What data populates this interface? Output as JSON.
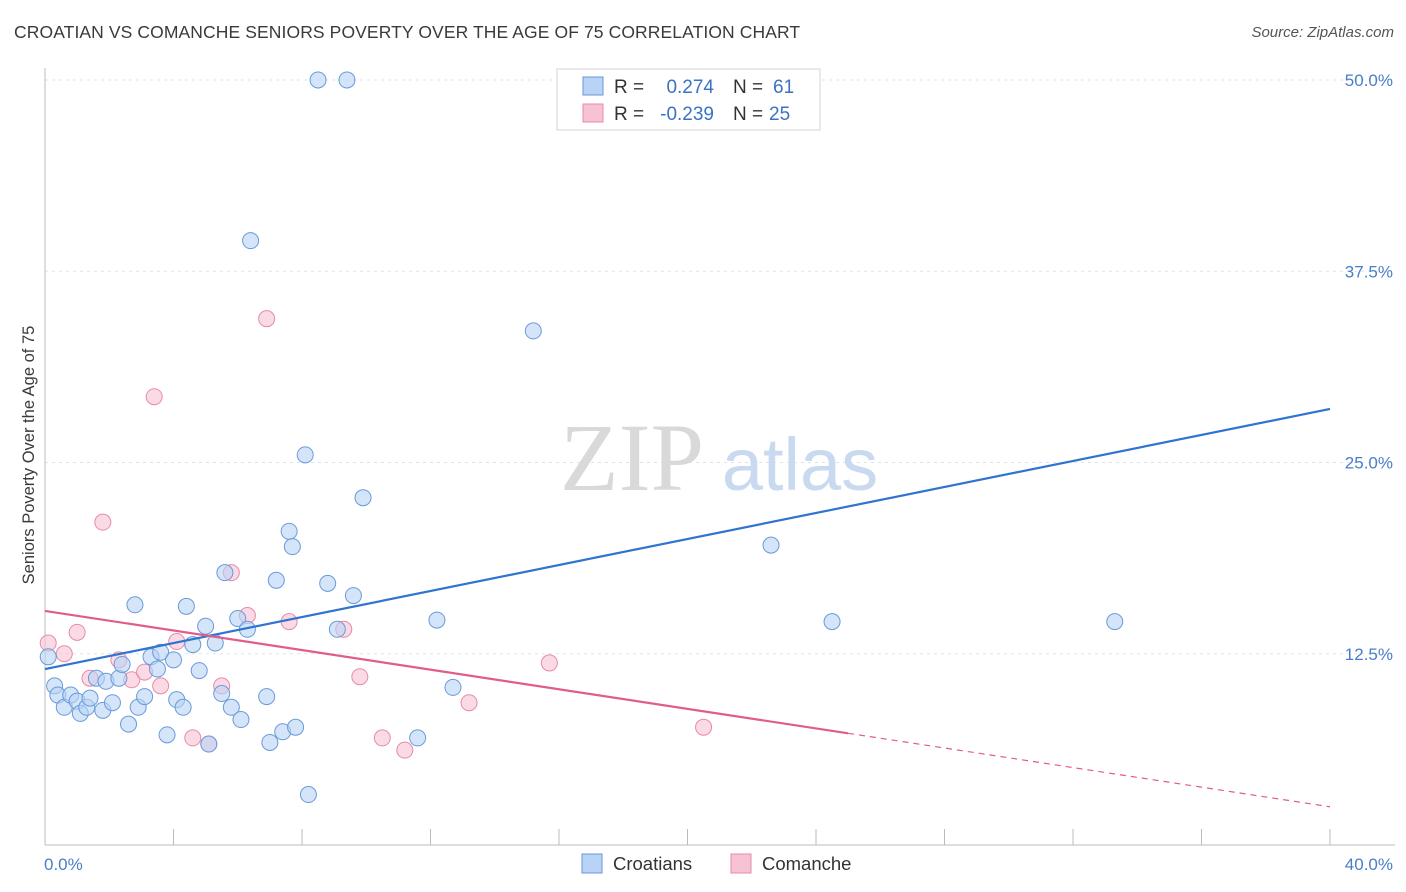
{
  "title": "CROATIAN VS COMANCHE SENIORS POVERTY OVER THE AGE OF 75 CORRELATION CHART",
  "source": "Source: ZipAtlas.com",
  "watermark": {
    "zip": "ZIP",
    "atlas": "atlas"
  },
  "colors": {
    "blue_fill": "#b8d3f5",
    "blue_stroke": "#6a9ad8",
    "blue_line": "#2f74d0",
    "pink_fill": "#f7c3d3",
    "pink_stroke": "#e88aa8",
    "pink_line": "#e05c8c",
    "tick_text": "#4a7ec8",
    "grid": "#dfe3ea"
  },
  "legend": {
    "rows": [
      {
        "r_label": "R =",
        "r_value": "0.274",
        "n_label": "N =",
        "n_value": "61"
      },
      {
        "r_label": "R =",
        "r_value": "-0.239",
        "n_label": "N =",
        "n_value": "25"
      }
    ]
  },
  "bottom_legend": [
    "Croatians",
    "Comanche"
  ],
  "chart_data": {
    "type": "scatter",
    "title": "CROATIAN VS COMANCHE SENIORS POVERTY OVER THE AGE OF 75 CORRELATION CHART",
    "xlabel": "",
    "ylabel": "Seniors Poverty Over the Age of 75",
    "xlim": [
      0,
      40
    ],
    "ylim": [
      0,
      50
    ],
    "x_tick_labels": [
      "0.0%",
      "40.0%"
    ],
    "y_ticks": [
      12.5,
      25.0,
      37.5,
      50.0
    ],
    "y_tick_labels": [
      "12.5%",
      "25.0%",
      "37.5%",
      "50.0%"
    ],
    "grid": true,
    "legend_position": "top-center",
    "series": [
      {
        "name": "Croatians",
        "r": 0.274,
        "n": 61,
        "trend": {
          "x": [
            0,
            40
          ],
          "y": [
            11.5,
            28.5
          ],
          "dashed_after": null
        },
        "points": [
          [
            0.1,
            12.3
          ],
          [
            0.3,
            10.4
          ],
          [
            0.4,
            9.8
          ],
          [
            0.6,
            9.0
          ],
          [
            0.8,
            9.8
          ],
          [
            1.0,
            9.4
          ],
          [
            1.1,
            8.6
          ],
          [
            1.3,
            9.0
          ],
          [
            1.4,
            9.6
          ],
          [
            1.6,
            10.9
          ],
          [
            1.8,
            8.8
          ],
          [
            1.9,
            10.7
          ],
          [
            2.1,
            9.3
          ],
          [
            2.3,
            10.9
          ],
          [
            2.4,
            11.8
          ],
          [
            2.6,
            7.9
          ],
          [
            2.8,
            15.7
          ],
          [
            2.9,
            9.0
          ],
          [
            3.1,
            9.7
          ],
          [
            3.3,
            12.3
          ],
          [
            3.5,
            11.5
          ],
          [
            3.6,
            12.6
          ],
          [
            3.8,
            7.2
          ],
          [
            4.0,
            12.1
          ],
          [
            4.1,
            9.5
          ],
          [
            4.3,
            9.0
          ],
          [
            4.4,
            15.6
          ],
          [
            4.6,
            13.1
          ],
          [
            4.8,
            11.4
          ],
          [
            5.0,
            14.3
          ],
          [
            5.1,
            6.6
          ],
          [
            5.3,
            13.2
          ],
          [
            5.5,
            9.9
          ],
          [
            5.6,
            17.8
          ],
          [
            5.8,
            9.0
          ],
          [
            6.0,
            14.8
          ],
          [
            6.1,
            8.2
          ],
          [
            6.3,
            14.1
          ],
          [
            6.4,
            39.5
          ],
          [
            6.9,
            9.7
          ],
          [
            7.0,
            6.7
          ],
          [
            7.2,
            17.3
          ],
          [
            7.4,
            7.4
          ],
          [
            7.6,
            20.5
          ],
          [
            7.7,
            19.5
          ],
          [
            7.8,
            7.7
          ],
          [
            8.1,
            25.5
          ],
          [
            8.2,
            3.3
          ],
          [
            8.5,
            50.0
          ],
          [
            8.8,
            17.1
          ],
          [
            9.1,
            14.1
          ],
          [
            9.4,
            50.0
          ],
          [
            9.6,
            16.3
          ],
          [
            9.9,
            22.7
          ],
          [
            11.6,
            7.0
          ],
          [
            12.2,
            14.7
          ],
          [
            12.7,
            10.3
          ],
          [
            15.2,
            33.6
          ],
          [
            22.6,
            19.6
          ],
          [
            24.5,
            14.6
          ],
          [
            33.3,
            14.6
          ]
        ]
      },
      {
        "name": "Comanche",
        "r": -0.239,
        "n": 25,
        "trend": {
          "x": [
            0,
            40
          ],
          "y": [
            15.3,
            2.5
          ],
          "dashed_after": 25
        },
        "points": [
          [
            0.1,
            13.2
          ],
          [
            0.6,
            12.5
          ],
          [
            1.0,
            13.9
          ],
          [
            1.4,
            10.9
          ],
          [
            1.8,
            21.1
          ],
          [
            2.3,
            12.1
          ],
          [
            2.7,
            10.8
          ],
          [
            3.1,
            11.3
          ],
          [
            3.4,
            29.3
          ],
          [
            3.6,
            10.4
          ],
          [
            4.1,
            13.3
          ],
          [
            4.6,
            7.0
          ],
          [
            5.1,
            6.6
          ],
          [
            5.5,
            10.4
          ],
          [
            5.8,
            17.8
          ],
          [
            6.3,
            15.0
          ],
          [
            6.9,
            34.4
          ],
          [
            7.6,
            14.6
          ],
          [
            9.3,
            14.1
          ],
          [
            9.8,
            11.0
          ],
          [
            10.5,
            7.0
          ],
          [
            11.2,
            6.2
          ],
          [
            13.2,
            9.3
          ],
          [
            15.7,
            11.9
          ],
          [
            20.5,
            7.7
          ]
        ]
      }
    ]
  }
}
